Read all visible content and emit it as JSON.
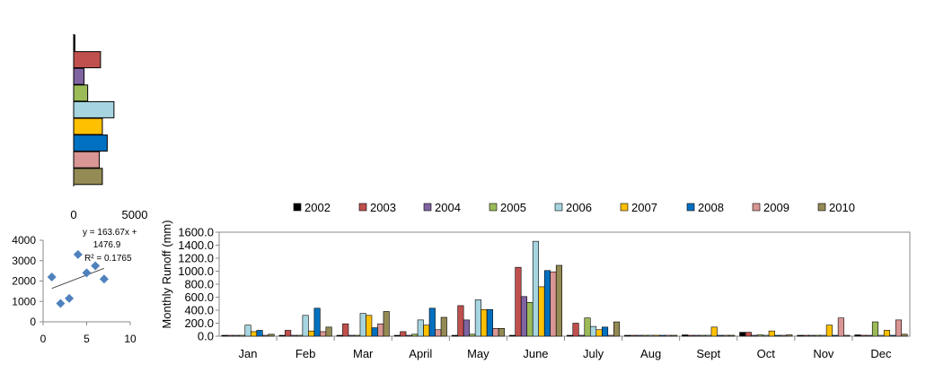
{
  "colors": {
    "2002": "#000000",
    "2003": "#c0504d",
    "2004": "#8064a2",
    "2005": "#9bbb59",
    "2006": "#a6d5e0",
    "2007": "#ffc000",
    "2008": "#0070c0",
    "2009": "#d99694",
    "2010": "#948a54",
    "scatter_points": "#4f81bd"
  },
  "chart_data": [
    {
      "type": "bar",
      "orientation": "horizontal",
      "categories": [
        "2002",
        "2003",
        "2004",
        "2005",
        "2006",
        "2007",
        "2008",
        "2009",
        "2010"
      ],
      "values": [
        100,
        2200,
        850,
        1150,
        3300,
        2350,
        2750,
        2100,
        2350
      ],
      "xlim": [
        0,
        5000
      ],
      "xticks": [
        "0",
        "5000"
      ],
      "legend": "none"
    },
    {
      "type": "scatter",
      "points": [
        [
          1,
          2200
        ],
        [
          2,
          900
        ],
        [
          3,
          1150
        ],
        [
          4,
          3300
        ],
        [
          5,
          2400
        ],
        [
          6,
          2750
        ],
        [
          7,
          2100
        ]
      ],
      "trendline": {
        "slope": 163.67,
        "intercept": 1476.9
      },
      "annotation": [
        "y = 163.67x +",
        "1476.9",
        "R² = 0.1765"
      ],
      "xlim": [
        0,
        10
      ],
      "ylim": [
        0,
        4000
      ],
      "xticks": [
        "0",
        "5",
        "10"
      ],
      "yticks": [
        "0",
        "1000",
        "2000",
        "3000",
        "4000"
      ]
    },
    {
      "type": "bar",
      "ylabel": "Monthly  Runoff (mm)",
      "ylim": [
        0,
        1600
      ],
      "yticks": [
        "0.0",
        "200.0",
        "400.0",
        "600.0",
        "800.0",
        "1000.0",
        "1200.0",
        "1400.0",
        "1600.0"
      ],
      "categories": [
        "Jan",
        "Feb",
        "Mar",
        "April",
        "May",
        "June",
        "July",
        "Aug",
        "Sept",
        "Oct",
        "Nov",
        "Dec"
      ],
      "legend_position": "top",
      "series": [
        {
          "name": "2002",
          "values": [
            0,
            0,
            0,
            0,
            0,
            0,
            0,
            0,
            20,
            60,
            10,
            20
          ]
        },
        {
          "name": "2003",
          "values": [
            0,
            90,
            190,
            70,
            470,
            1060,
            200,
            0,
            0,
            60,
            0,
            0
          ]
        },
        {
          "name": "2004",
          "values": [
            0,
            0,
            0,
            0,
            250,
            610,
            0,
            0,
            0,
            0,
            0,
            0
          ]
        },
        {
          "name": "2005",
          "values": [
            0,
            0,
            0,
            30,
            30,
            520,
            280,
            0,
            0,
            20,
            0,
            220
          ]
        },
        {
          "name": "2006",
          "values": [
            170,
            320,
            350,
            250,
            560,
            1460,
            150,
            0,
            0,
            0,
            0,
            0
          ]
        },
        {
          "name": "2007",
          "values": [
            70,
            80,
            320,
            170,
            410,
            760,
            100,
            0,
            140,
            80,
            170,
            90
          ]
        },
        {
          "name": "2008",
          "values": [
            90,
            430,
            130,
            430,
            410,
            1010,
            140,
            0,
            0,
            0,
            0,
            0
          ]
        },
        {
          "name": "2009",
          "values": [
            0,
            70,
            190,
            100,
            120,
            990,
            0,
            0,
            0,
            0,
            280,
            250
          ]
        },
        {
          "name": "2010",
          "values": [
            30,
            140,
            380,
            290,
            120,
            1090,
            220,
            0,
            0,
            20,
            0,
            30
          ]
        }
      ]
    }
  ]
}
